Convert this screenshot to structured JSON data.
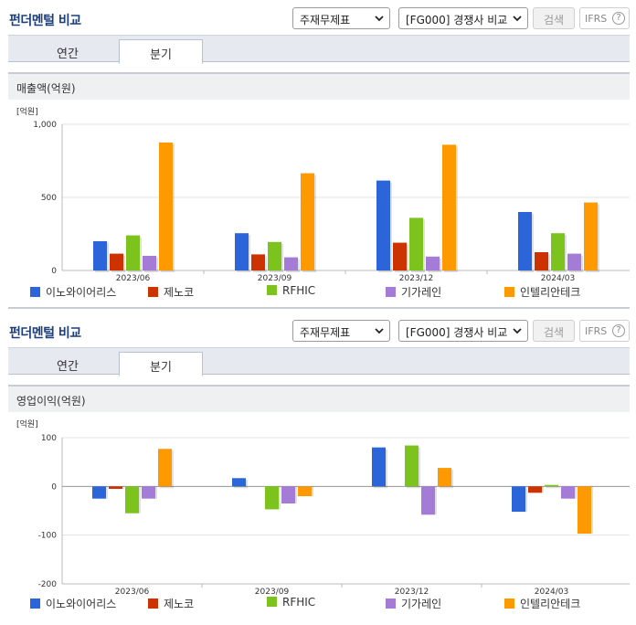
{
  "panels": [
    {
      "title": "펀더멘털 비교",
      "select_statement": "주재무제표",
      "select_compare": "[FG000] 경쟁사 비교",
      "search_label": "검색",
      "ifrs_label": "IFRS",
      "help_glyph": "?",
      "tabs": [
        {
          "label": "연간",
          "active": false
        },
        {
          "label": "분기",
          "active": true
        }
      ],
      "metric_label": "매출액(억원)"
    },
    {
      "title": "펀더멘털 비교",
      "select_statement": "주재무제표",
      "select_compare": "[FG000] 경쟁사 비교",
      "search_label": "검색",
      "ifrs_label": "IFRS",
      "help_glyph": "?",
      "tabs": [
        {
          "label": "연간",
          "active": false
        },
        {
          "label": "분기",
          "active": true
        }
      ],
      "metric_label": "영업이익(억원)"
    }
  ],
  "colors": {
    "accent": "#1d3f7a",
    "series": [
      "#2b65d9",
      "#cc3300",
      "#7dc31e",
      "#a57bd8",
      "#ff9900"
    ]
  },
  "chart_data": [
    {
      "type": "bar",
      "unit_label": "[억원]",
      "categories": [
        "2023/06",
        "2023/09",
        "2023/12",
        "2024/03"
      ],
      "yticks": [
        "1,000",
        "500",
        "0"
      ],
      "ylim": [
        0,
        1000
      ],
      "grid": true,
      "legend_position": "bottom",
      "series": [
        {
          "name": "이노와이어리스",
          "values": [
            200,
            255,
            615,
            400
          ]
        },
        {
          "name": "제노코",
          "values": [
            115,
            110,
            190,
            125
          ]
        },
        {
          "name": "RFHIC",
          "values": [
            240,
            195,
            360,
            255
          ]
        },
        {
          "name": "기가레인",
          "values": [
            100,
            90,
            95,
            115
          ]
        },
        {
          "name": "인텔리안테크",
          "values": [
            875,
            665,
            860,
            465
          ]
        }
      ]
    },
    {
      "type": "bar",
      "unit_label": "[억원]",
      "categories": [
        "2023/06",
        "2023/09",
        "2023/12",
        "2024/03"
      ],
      "yticks": [
        "100",
        "0",
        "-100",
        "-200"
      ],
      "ylim": [
        -200,
        100
      ],
      "grid": true,
      "legend_position": "bottom",
      "series": [
        {
          "name": "이노와이어리스",
          "values": [
            -25,
            17,
            80,
            -52
          ]
        },
        {
          "name": "제노코",
          "values": [
            -5,
            0,
            0,
            -13
          ]
        },
        {
          "name": "RFHIC",
          "values": [
            -55,
            -47,
            84,
            3
          ]
        },
        {
          "name": "기가레인",
          "values": [
            -25,
            -35,
            -58,
            -25
          ]
        },
        {
          "name": "인텔리안테크",
          "values": [
            77,
            -20,
            38,
            -97
          ]
        }
      ]
    }
  ]
}
